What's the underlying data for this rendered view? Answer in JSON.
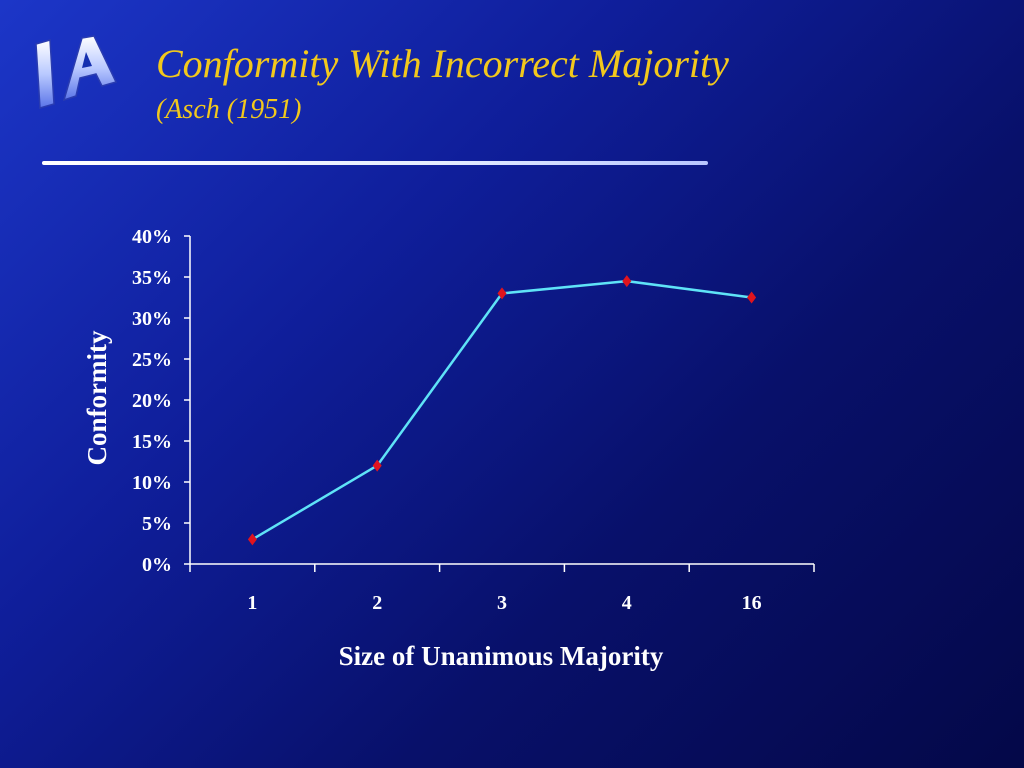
{
  "slide": {
    "logo_text": "IA",
    "title": "Conformity With Incorrect Majority",
    "subtitle": "(Asch (1951)"
  },
  "colors": {
    "title": "#f2c81c",
    "line": "#5fe3f7",
    "marker": "#e0141e",
    "axis": "#ffffff"
  },
  "chart_data": {
    "type": "line",
    "categories": [
      "1",
      "2",
      "3",
      "4",
      "16"
    ],
    "series": [
      {
        "values": [
          3,
          12,
          33,
          34.5,
          32.5
        ]
      }
    ],
    "xlabel": "Size of Unanimous Majority",
    "ylabel": "Conformity",
    "ylim": [
      0,
      40
    ],
    "yticks": [
      "0%",
      "5%",
      "10%",
      "15%",
      "20%",
      "25%",
      "30%",
      "35%",
      "40%"
    ],
    "grid": false,
    "legend": "none"
  }
}
